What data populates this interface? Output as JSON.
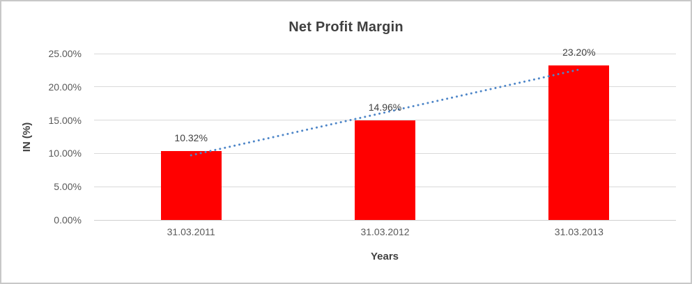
{
  "window": {
    "background_color": "#ffffff",
    "border_color": "#c8c8c8"
  },
  "chart_data": {
    "type": "bar",
    "title": "Net Profit Margin",
    "xlabel": "Years",
    "ylabel": "IN (%)",
    "categories": [
      "31.03.2011",
      "31.03.2012",
      "31.03.2013"
    ],
    "values": [
      10.32,
      14.96,
      23.2
    ],
    "data_labels": [
      "10.32%",
      "14.96%",
      "23.20%"
    ],
    "ylim": [
      0,
      25
    ],
    "ytick_step": 5,
    "ytick_labels": [
      "0.00%",
      "5.00%",
      "10.00%",
      "15.00%",
      "20.00%",
      "25.00%"
    ],
    "grid": true,
    "legend": "none",
    "bar_color": "#ff0000",
    "title_color": "#404040",
    "tick_label_color": "#595959",
    "gridline_color": "#d9d9d9",
    "trendline": {
      "type": "linear",
      "style": "dotted",
      "color": "#4e86c8"
    }
  }
}
